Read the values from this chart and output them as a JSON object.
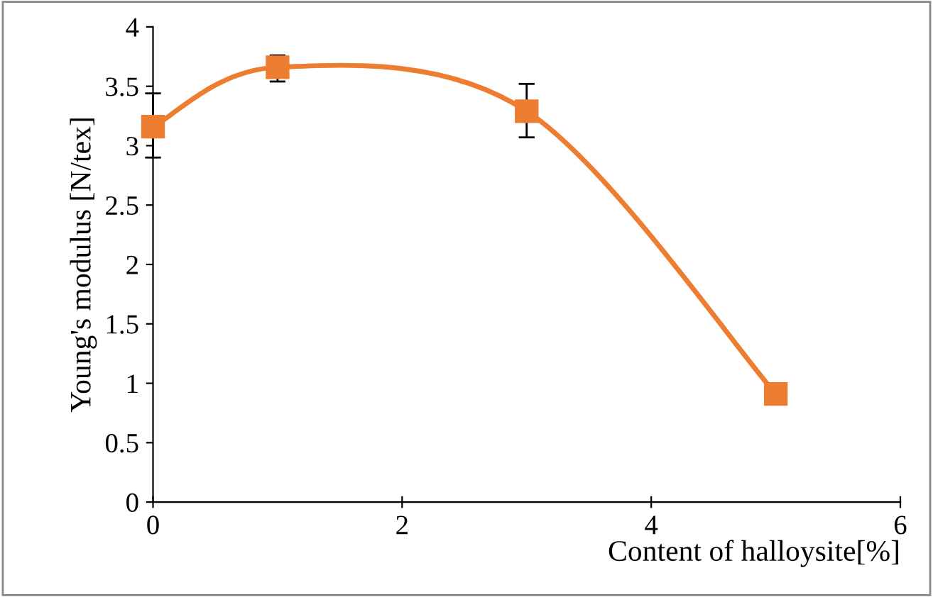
{
  "chart_data": {
    "type": "line",
    "xlabel": "Content of halloysite[%]",
    "ylabel": "Young's modulus [N/tex]",
    "x": [
      0,
      1,
      3,
      5
    ],
    "series": [
      {
        "color": "#ed7d31",
        "values": [
          3.16,
          3.66,
          3.29,
          0.91
        ],
        "errors": [
          [
            2.9,
            3.44
          ],
          [
            3.54,
            3.76
          ],
          [
            3.07,
            3.52
          ],
          null
        ]
      }
    ],
    "xlim": [
      0,
      6
    ],
    "xticks": [
      0,
      2,
      4,
      6
    ],
    "ylim": [
      0,
      4
    ],
    "yticks": [
      0,
      0.5,
      1,
      1.5,
      2,
      2.5,
      3,
      3.5,
      4
    ],
    "marker": "square",
    "line_style": "solid",
    "grid": false,
    "legend": false
  }
}
